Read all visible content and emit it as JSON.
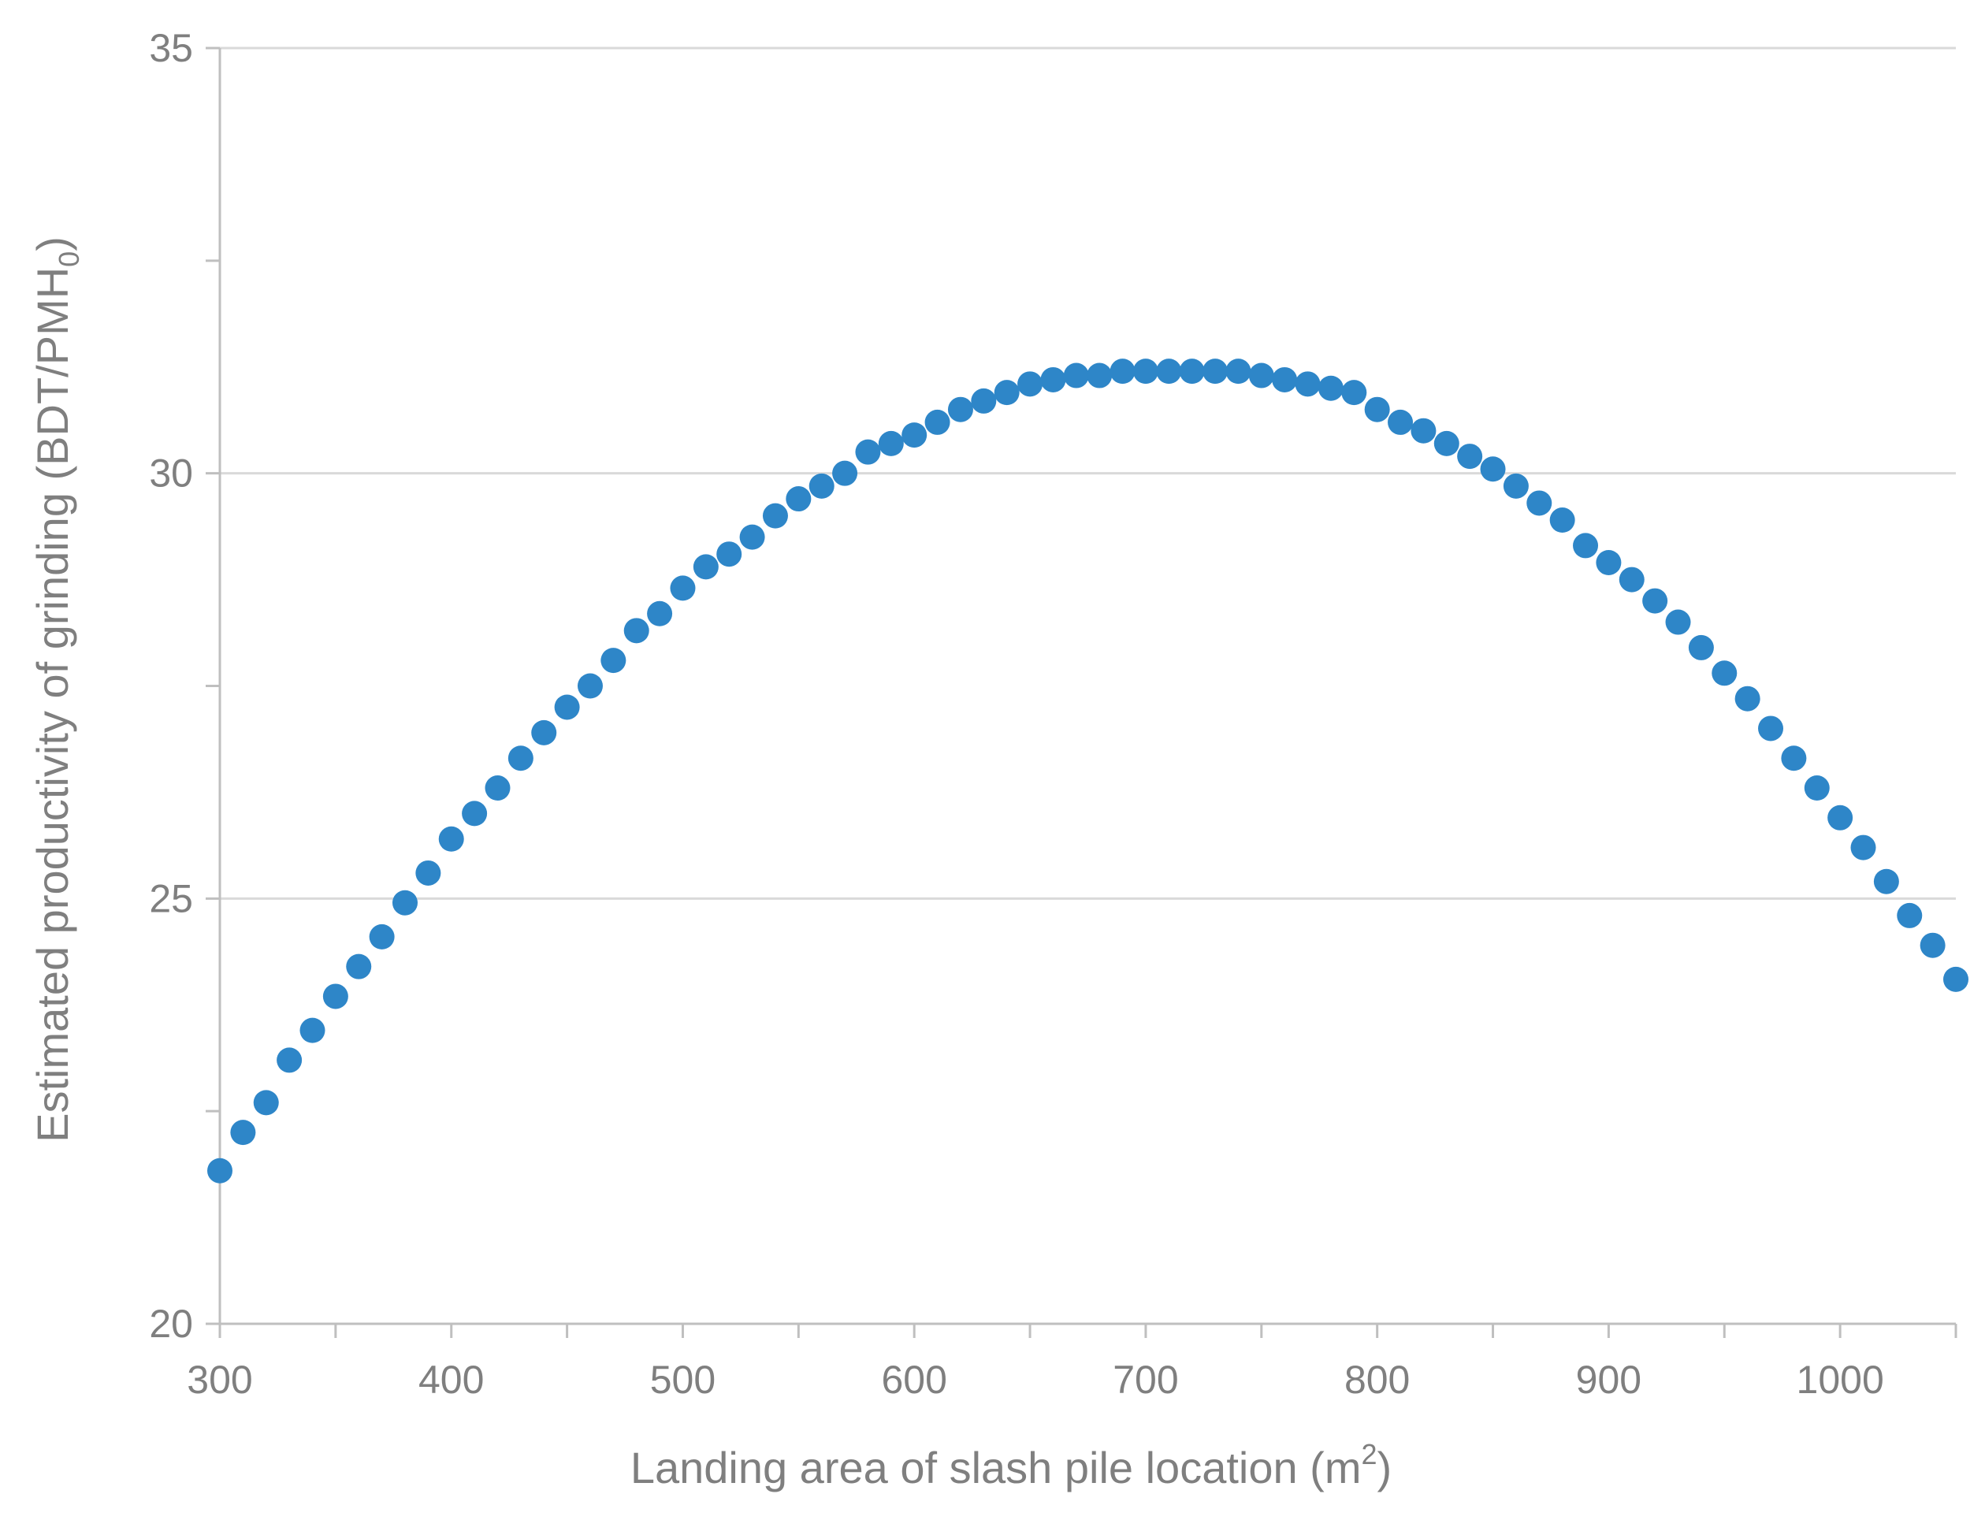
{
  "chart_data": {
    "type": "scatter",
    "xlabel": "Landing area of slash pile location (m",
    "xlabel_sup": "2",
    "xlabel_end": ")",
    "ylabel": "Estimated productivity of grinding (BDT/PMH",
    "ylabel_sub": "0",
    "ylabel_end": ")",
    "xlim": [
      300,
      1050
    ],
    "ylim": [
      20,
      35
    ],
    "x_ticks": [
      300,
      400,
      500,
      600,
      700,
      800,
      900,
      1000
    ],
    "y_ticks": [
      20,
      25,
      30,
      35
    ],
    "x_tick_labels": [
      "300",
      "400",
      "500",
      "600",
      "700",
      "800",
      "900",
      "1000"
    ],
    "y_tick_labels": [
      "20",
      "25",
      "30",
      "35"
    ],
    "grid": "horizontal",
    "marker_color": "#2e86c8",
    "gridline_color": "#d9d9d9",
    "axis_color": "#bfbfbf",
    "x": [
      300,
      310,
      320,
      330,
      340,
      350,
      360,
      370,
      380,
      390,
      400,
      410,
      420,
      430,
      440,
      450,
      460,
      470,
      480,
      490,
      500,
      510,
      520,
      530,
      540,
      550,
      560,
      570,
      580,
      590,
      600,
      610,
      620,
      630,
      640,
      650,
      660,
      670,
      680,
      690,
      700,
      710,
      720,
      730,
      740,
      750,
      760,
      770,
      780,
      790,
      800,
      810,
      820,
      830,
      840,
      850,
      860,
      870,
      880,
      890,
      900,
      910,
      920,
      930,
      940,
      950,
      960,
      970,
      980,
      990,
      1000,
      1010,
      1020,
      1030,
      1040,
      1050
    ],
    "y": [
      21.8,
      22.25,
      22.6,
      23.1,
      23.45,
      23.85,
      24.2,
      24.55,
      24.95,
      25.3,
      25.7,
      26.0,
      26.3,
      26.65,
      26.95,
      27.25,
      27.5,
      27.8,
      28.15,
      28.35,
      28.65,
      28.9,
      29.05,
      29.25,
      29.5,
      29.7,
      29.85,
      30.0,
      30.25,
      30.35,
      30.45,
      30.6,
      30.75,
      30.85,
      30.95,
      31.05,
      31.1,
      31.15,
      31.15,
      31.2,
      31.2,
      31.2,
      31.2,
      31.2,
      31.2,
      31.15,
      31.1,
      31.05,
      31.0,
      30.95,
      30.75,
      30.6,
      30.5,
      30.35,
      30.2,
      30.05,
      29.85,
      29.65,
      29.45,
      29.15,
      28.95,
      28.75,
      28.5,
      28.25,
      27.95,
      27.65,
      27.35,
      27.0,
      26.65,
      26.3,
      25.95,
      25.6,
      25.2,
      24.8,
      24.45,
      24.05
    ]
  }
}
